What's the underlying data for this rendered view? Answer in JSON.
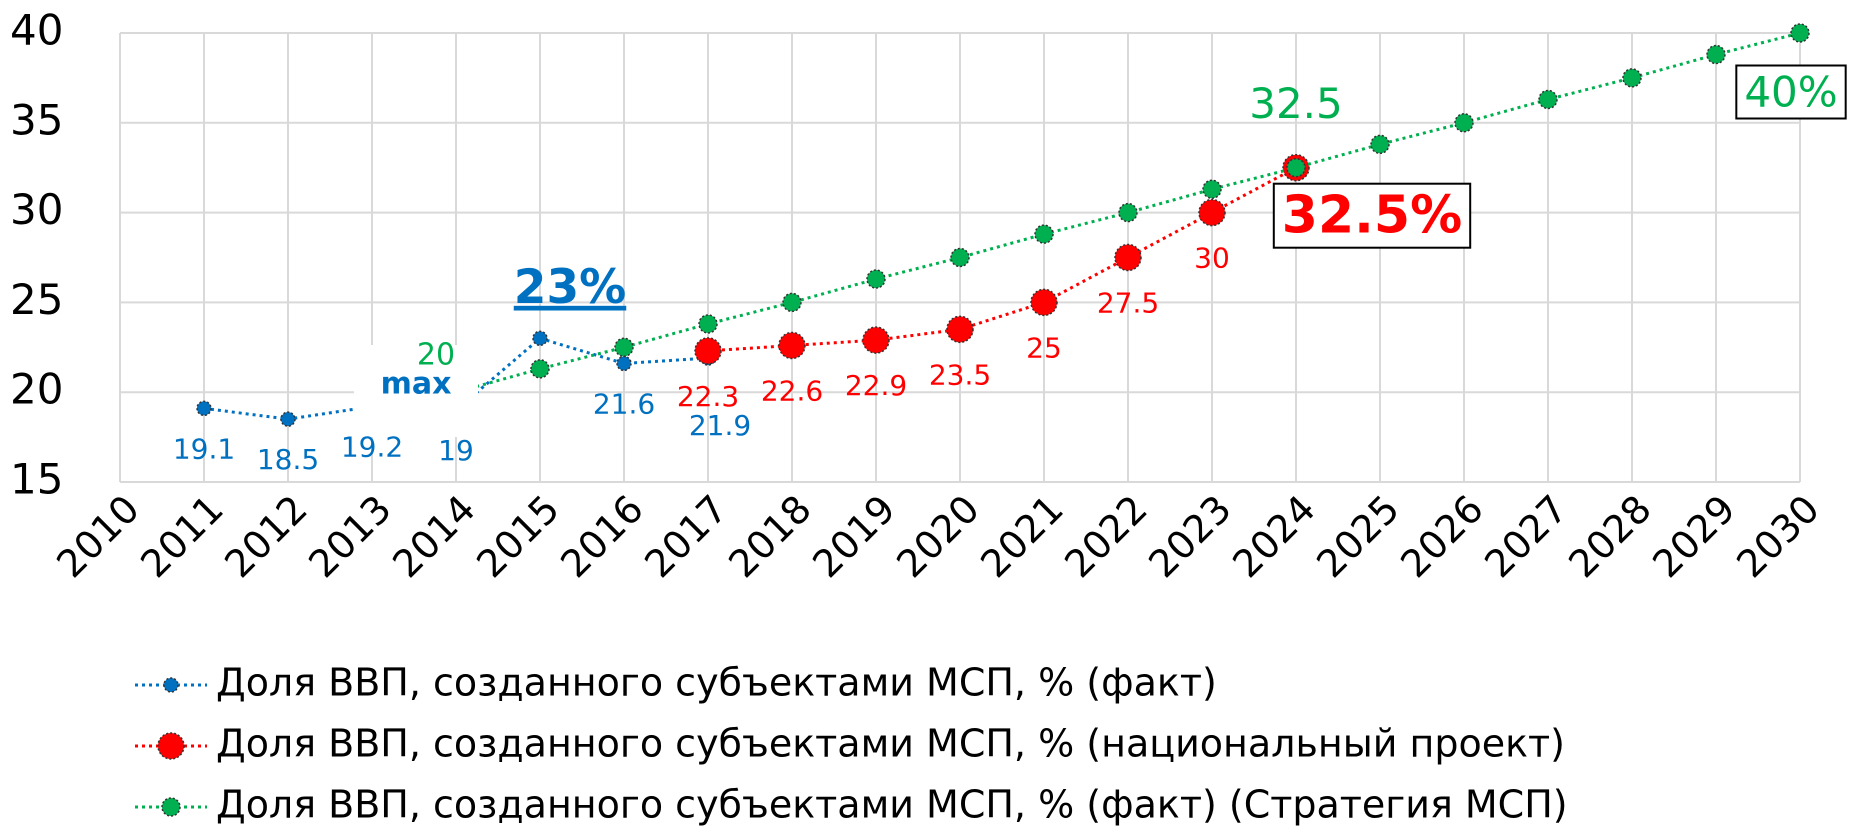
{
  "chart_data": {
    "type": "line",
    "categories": [
      "2010",
      "2011",
      "2012",
      "2013",
      "2014",
      "2015",
      "2016",
      "2017",
      "2018",
      "2019",
      "2020",
      "2021",
      "2022",
      "2023",
      "2024",
      "2025",
      "2026",
      "2027",
      "2028",
      "2029",
      "2030"
    ],
    "ylim": [
      15,
      40
    ],
    "yticks": [
      15,
      20,
      25,
      30,
      35,
      40
    ],
    "grid": true,
    "series": [
      {
        "name": "Доля ВВП, созданного субъектами МСП, % (факт)",
        "color": "#0070c0",
        "values": [
          null,
          19.1,
          18.5,
          19.2,
          19,
          23,
          21.6,
          21.9,
          null,
          null,
          null,
          null,
          null,
          null,
          null,
          null,
          null,
          null,
          null,
          null,
          null
        ],
        "value_labels": [
          null,
          "19.1",
          "18.5",
          "19.2",
          "19",
          "23%",
          "21.6",
          "21.9",
          null,
          null,
          null,
          null,
          null,
          null,
          null,
          null,
          null,
          null,
          null,
          null,
          null
        ]
      },
      {
        "name": "Доля ВВП, созданного субъектами МСП, % (национальный проект)",
        "color": "#ff0000",
        "values": [
          null,
          null,
          null,
          null,
          null,
          null,
          null,
          22.3,
          22.6,
          22.9,
          23.5,
          25,
          27.5,
          30,
          32.5,
          null,
          null,
          null,
          null,
          null,
          null
        ],
        "value_labels": [
          null,
          null,
          null,
          null,
          null,
          null,
          null,
          "22.3",
          "22.6",
          "22.9",
          "23.5",
          "25",
          "27.5",
          "30",
          "32.5%",
          null,
          null,
          null,
          null,
          null,
          null
        ]
      },
      {
        "name": "Доля ВВП, созданного субъектами МСП, % (факт) (Стратегия МСП)",
        "color": "#00b050",
        "values": [
          null,
          null,
          null,
          null,
          20,
          21.3,
          22.5,
          23.8,
          25,
          26.3,
          27.5,
          28.8,
          30,
          31.3,
          32.5,
          33.8,
          35,
          36.3,
          37.5,
          38.8,
          40
        ],
        "value_labels": [
          null,
          null,
          null,
          null,
          "20",
          null,
          null,
          null,
          null,
          null,
          null,
          null,
          null,
          null,
          "32.5",
          null,
          null,
          null,
          null,
          null,
          "40%"
        ]
      }
    ],
    "annotations": [
      "max"
    ]
  }
}
